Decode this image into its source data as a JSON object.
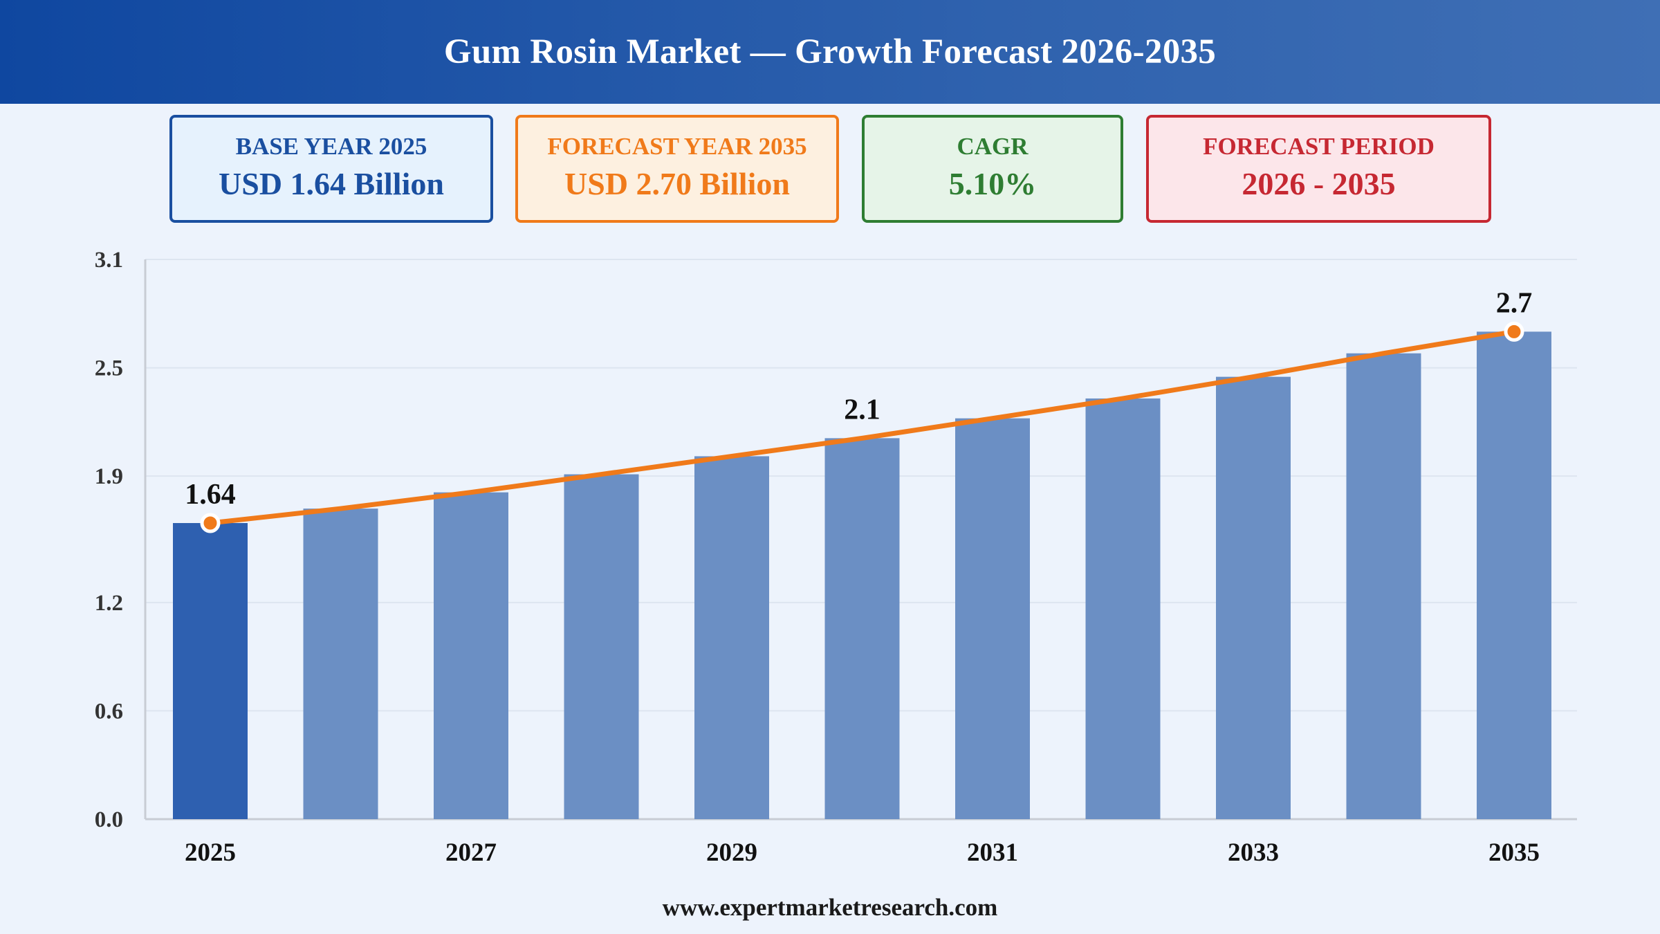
{
  "header": {
    "title": "Gum Rosin Market — Growth Forecast 2026-2035"
  },
  "cards": [
    {
      "label": "BASE YEAR 2025",
      "value": "USD 1.64 Billion"
    },
    {
      "label": "FORECAST YEAR 2035",
      "value": "USD 2.70 Billion"
    },
    {
      "label": "CAGR",
      "value": "5.10%"
    },
    {
      "label": "FORECAST PERIOD",
      "value": "2026 - 2035"
    }
  ],
  "colors": {
    "base_bar": "#2e60b0",
    "forecast_bar": "#6b8fc4",
    "trend_line": "#f07a1a",
    "gridline": "#dde5f0",
    "axis": "#c8ccd4"
  },
  "chart_data": {
    "type": "bar",
    "categories": [
      "2025",
      "2026",
      "2027",
      "2028",
      "2029",
      "2030",
      "2031",
      "2032",
      "2033",
      "2034",
      "2035"
    ],
    "tick_categories": [
      "2025",
      "2027",
      "2029",
      "2031",
      "2033",
      "2035"
    ],
    "values": [
      1.64,
      1.72,
      1.81,
      1.91,
      2.01,
      2.11,
      2.22,
      2.33,
      2.45,
      2.58,
      2.7
    ],
    "trend_line": [
      1.64,
      1.72,
      1.81,
      1.91,
      2.01,
      2.11,
      2.22,
      2.33,
      2.45,
      2.58,
      2.7
    ],
    "data_labels": [
      {
        "category": "2025",
        "text": "1.64"
      },
      {
        "category": "2030",
        "text": "2.1"
      },
      {
        "category": "2035",
        "text": "2.7"
      }
    ],
    "yticks": [
      "0.0",
      "0.6",
      "1.2",
      "1.9",
      "2.5",
      "3.1"
    ],
    "ylim": [
      0,
      3.1
    ],
    "grid": true,
    "title": "",
    "xlabel": "",
    "ylabel": ""
  },
  "footer": {
    "text": "www.expertmarketresearch.com"
  }
}
